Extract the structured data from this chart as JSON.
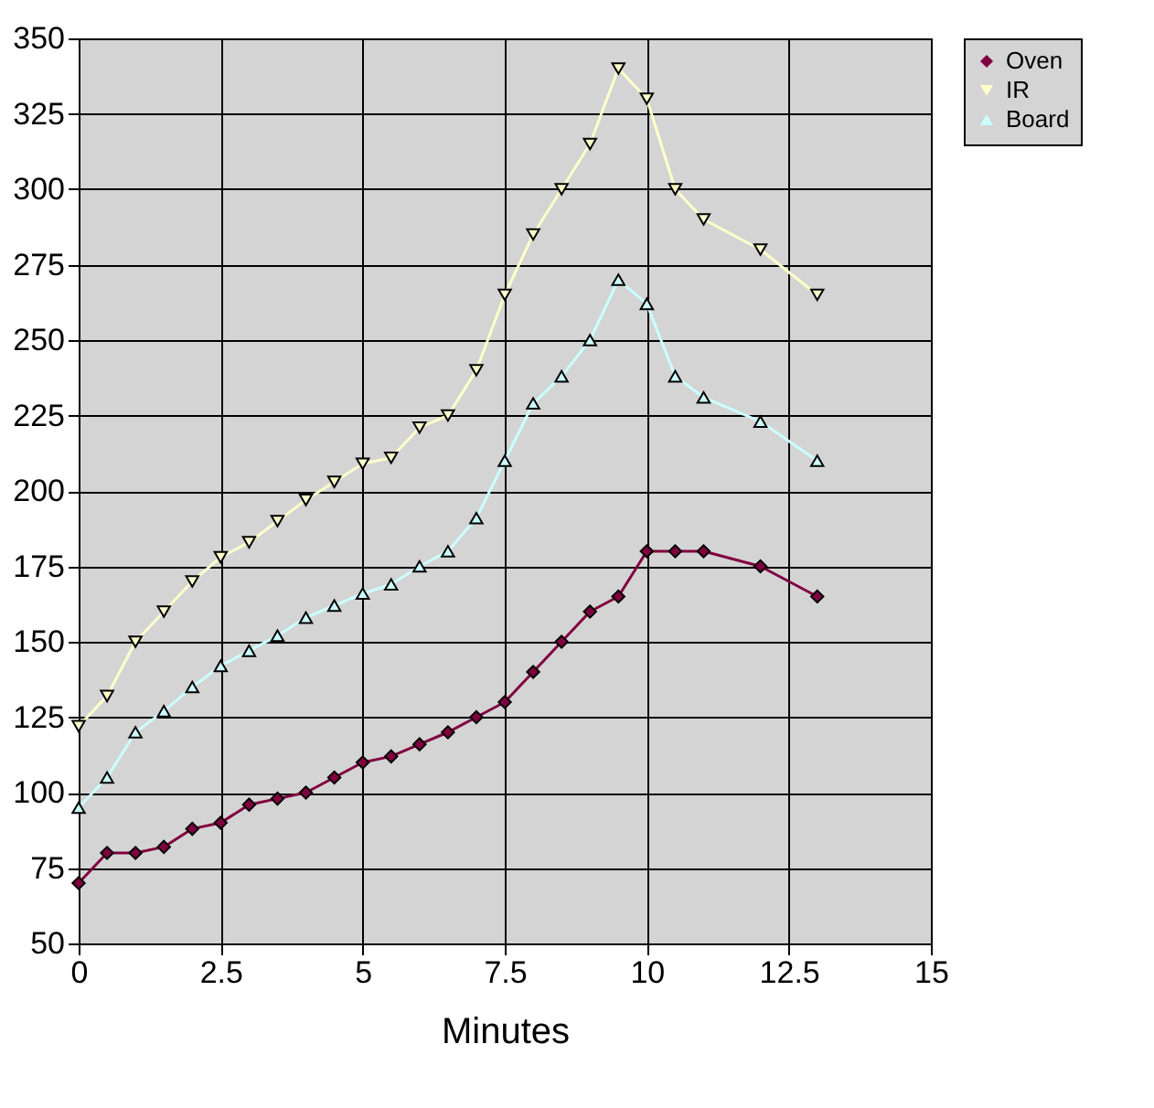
{
  "chart_data": {
    "type": "line",
    "xlabel": "Minutes",
    "xlim": [
      0,
      15
    ],
    "xticks": [
      0,
      2.5,
      5,
      7.5,
      10,
      12.5,
      15
    ],
    "ylim": [
      50,
      350
    ],
    "yticks": [
      50,
      75,
      100,
      125,
      150,
      175,
      200,
      225,
      250,
      275,
      300,
      325,
      350
    ],
    "grid": true,
    "legend": "right",
    "x": [
      0,
      0.5,
      1,
      1.5,
      2,
      2.5,
      3,
      3.5,
      4,
      4.5,
      5,
      5.5,
      6,
      6.5,
      7,
      7.5,
      8,
      8.5,
      9,
      9.5,
      10,
      10.5,
      11,
      12,
      13
    ],
    "series": [
      {
        "name": "Oven",
        "color": "#800040",
        "marker": "diamond",
        "values": [
          70,
          80,
          80,
          82,
          88,
          90,
          96,
          98,
          100,
          105,
          110,
          112,
          116,
          120,
          125,
          130,
          140,
          150,
          160,
          165,
          180,
          180,
          180,
          175,
          165
        ]
      },
      {
        "name": "IR",
        "color": "#ffffcc",
        "marker": "triangle-down",
        "values": [
          122,
          132,
          150,
          160,
          170,
          178,
          183,
          190,
          197,
          203,
          209,
          211,
          221,
          225,
          240,
          265,
          285,
          300,
          315,
          340,
          330,
          300,
          290,
          280,
          265
        ]
      },
      {
        "name": "Board",
        "color": "#ccffff",
        "marker": "triangle",
        "values": [
          95,
          105,
          120,
          127,
          135,
          142,
          147,
          152,
          158,
          162,
          166,
          169,
          175,
          180,
          191,
          210,
          229,
          238,
          250,
          270,
          262,
          238,
          231,
          223,
          210
        ]
      }
    ]
  }
}
